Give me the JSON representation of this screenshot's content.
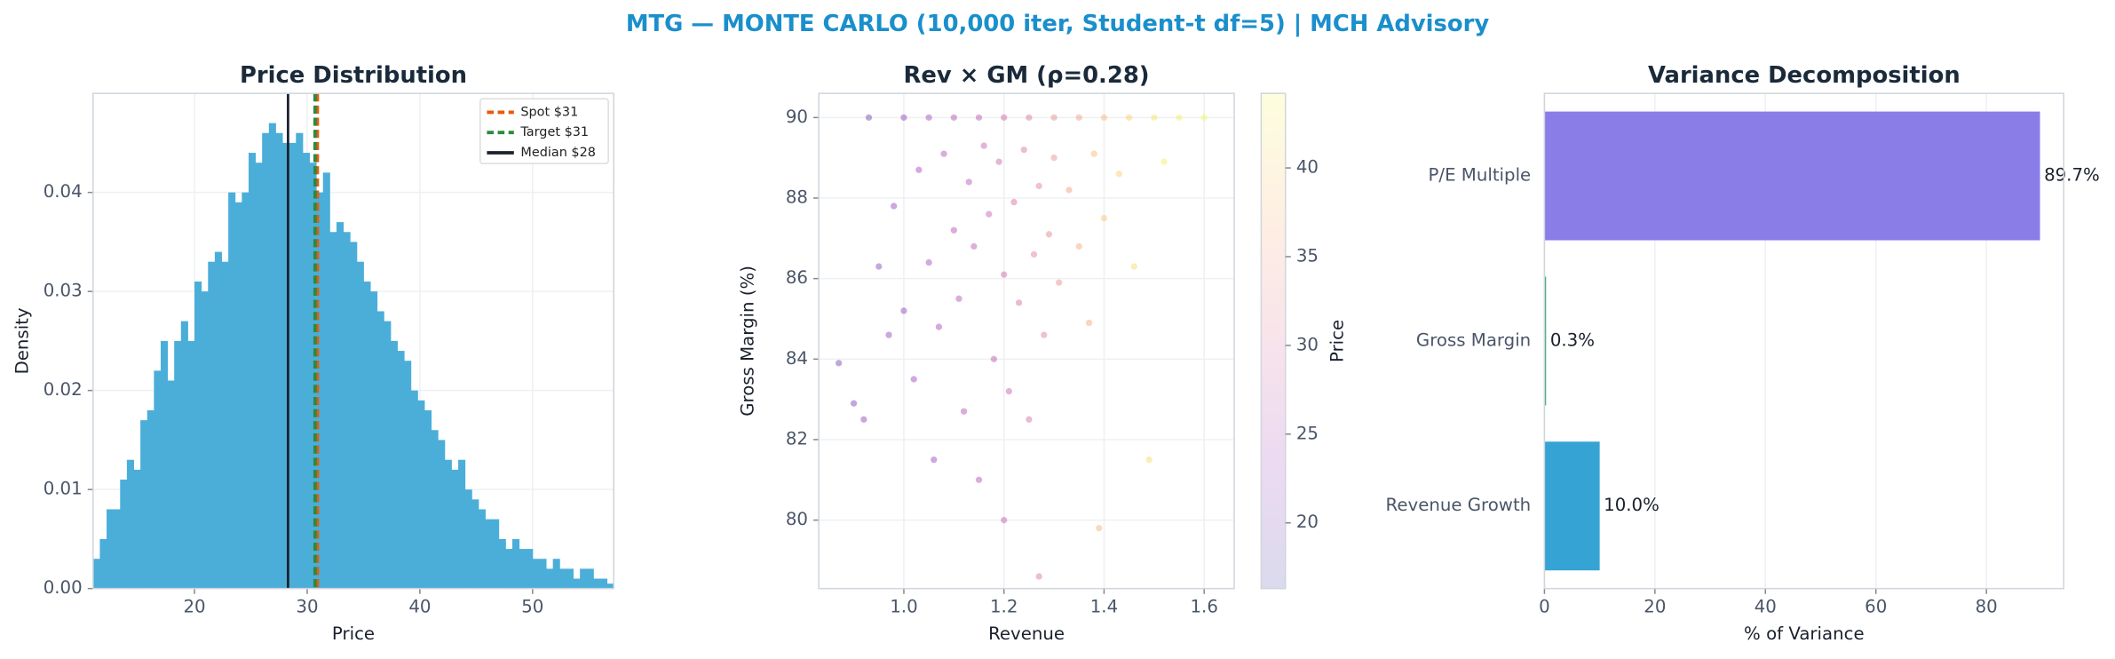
{
  "title": "MTG — MONTE CARLO (10,000 iter, Student-t df=5) | MCH Advisory",
  "chart_data": [
    {
      "type": "histogram",
      "title": "Price Distribution",
      "x_label": "Price",
      "y_label": "Density",
      "color": "#4aaed9",
      "bins": [
        11.0,
        11.6,
        12.2,
        12.8,
        13.4,
        14.0,
        14.6,
        15.2,
        15.8,
        16.4,
        17.0,
        17.6,
        18.2,
        18.8,
        19.4,
        20.0,
        20.6,
        21.2,
        21.8,
        22.4,
        23.0,
        23.6,
        24.2,
        24.8,
        25.4,
        26.0,
        26.6,
        27.2,
        27.8,
        28.4,
        29.0,
        29.6,
        30.2,
        30.8,
        31.4,
        32.0,
        32.6,
        33.2,
        33.8,
        34.4,
        35.0,
        35.6,
        36.2,
        36.8,
        37.4,
        38.0,
        38.6,
        39.2,
        39.8,
        40.4,
        41.0,
        41.6,
        42.2,
        42.8,
        43.4,
        44.0,
        44.6,
        45.2,
        45.8,
        46.4,
        47.0,
        47.6,
        48.2,
        48.8,
        49.4,
        50.0,
        50.6,
        51.2,
        51.8,
        52.4,
        53.0,
        53.6,
        54.2,
        54.8,
        55.4,
        56.0,
        56.6,
        57.2
      ],
      "values": [
        0.003,
        0.005,
        0.008,
        0.008,
        0.011,
        0.013,
        0.012,
        0.017,
        0.018,
        0.022,
        0.025,
        0.021,
        0.025,
        0.027,
        0.025,
        0.031,
        0.03,
        0.033,
        0.034,
        0.033,
        0.04,
        0.039,
        0.04,
        0.044,
        0.043,
        0.046,
        0.047,
        0.046,
        0.045,
        0.045,
        0.046,
        0.044,
        0.043,
        0.04,
        0.042,
        0.036,
        0.037,
        0.036,
        0.035,
        0.033,
        0.031,
        0.03,
        0.028,
        0.027,
        0.025,
        0.024,
        0.023,
        0.02,
        0.019,
        0.018,
        0.016,
        0.015,
        0.013,
        0.012,
        0.013,
        0.01,
        0.009,
        0.008,
        0.007,
        0.007,
        0.005,
        0.004,
        0.005,
        0.004,
        0.004,
        0.003,
        0.003,
        0.002,
        0.003,
        0.002,
        0.002,
        0.001,
        0.002,
        0.002,
        0.001,
        0.001,
        0.0005
      ],
      "lines": [
        {
          "name": "Spot $31",
          "value": 30.9,
          "color": "#e8590c",
          "dashed": true
        },
        {
          "name": "Target $31",
          "value": 30.7,
          "color": "#2b8a3e",
          "dashed": true
        },
        {
          "name": "Median $28",
          "value": 28.3,
          "color": "#1a202c",
          "dashed": false
        }
      ],
      "xlim": [
        11,
        57.2
      ],
      "xticks": [
        20,
        30,
        40,
        50
      ],
      "ylim": [
        0,
        0.05
      ],
      "yticks": [
        {
          "value": 0,
          "label": "0.00"
        },
        0.01,
        0.02,
        0.03,
        0.04
      ],
      "grid": true,
      "legend": "upper right"
    },
    {
      "type": "scatter",
      "title": "Rev × GM (ρ=0.28)",
      "x_label": "Revenue",
      "y_label": "Gross Margin (%)",
      "colorbar_label": "Price",
      "x": [
        0.87,
        0.9,
        0.92,
        0.95,
        0.97,
        0.98,
        1.0,
        1.02,
        1.03,
        1.05,
        1.06,
        1.07,
        1.08,
        1.1,
        1.11,
        1.12,
        1.13,
        1.14,
        1.15,
        1.16,
        1.17,
        1.18,
        1.19,
        1.2,
        1.21,
        1.22,
        1.23,
        1.24,
        1.25,
        1.26,
        1.27,
        1.28,
        1.29,
        1.3,
        1.31,
        1.33,
        1.35,
        1.37,
        1.38,
        1.4,
        1.43,
        1.46,
        1.49,
        1.52,
        1.27,
        1.39,
        1.2,
        0.93,
        1.0,
        1.05,
        1.1,
        1.15,
        1.2,
        1.25,
        1.3,
        1.35,
        1.4,
        1.45,
        1.5,
        1.55,
        1.6
      ],
      "values": [
        83.9,
        82.9,
        82.5,
        86.3,
        84.6,
        87.8,
        85.2,
        83.5,
        88.7,
        86.4,
        81.5,
        84.8,
        89.1,
        87.2,
        85.5,
        82.7,
        88.4,
        86.8,
        81.0,
        89.3,
        87.6,
        84.0,
        88.9,
        86.1,
        83.2,
        87.9,
        85.4,
        89.2,
        82.5,
        86.6,
        88.3,
        84.6,
        87.1,
        89.0,
        85.9,
        88.2,
        86.8,
        84.9,
        89.1,
        87.5,
        88.6,
        86.3,
        81.5,
        88.9,
        78.6,
        79.8,
        80.0,
        90,
        90,
        90,
        90,
        90,
        90,
        90,
        90,
        90,
        90,
        90,
        90,
        90,
        90
      ],
      "color_values": [
        20,
        20,
        21,
        21,
        22,
        22,
        22,
        23,
        24,
        24,
        23,
        24,
        25,
        25,
        25,
        25,
        26,
        26,
        25,
        27,
        27,
        26,
        28,
        28,
        27,
        29,
        29,
        30,
        29,
        31,
        31,
        31,
        32,
        33,
        33,
        35,
        36,
        36,
        38,
        39,
        40,
        41,
        41,
        43,
        30,
        37,
        27,
        20,
        22,
        24,
        25,
        26,
        28,
        30,
        33,
        35,
        38,
        40,
        42,
        43,
        44
      ],
      "colormap": [
        "#0d0887",
        "#7e03a8",
        "#cc4778",
        "#f89540",
        "#f0f921"
      ],
      "clim": [
        16.3,
        44.2
      ],
      "cticks": [
        20,
        25,
        30,
        35,
        40
      ],
      "xlim": [
        0.83,
        1.66
      ],
      "xticks": [
        {
          "value": 1.0,
          "label": "1.0"
        },
        1.2,
        1.4,
        1.6
      ],
      "ylim": [
        78.3,
        90.6
      ],
      "yticks": [
        80,
        82,
        84,
        86,
        88,
        90
      ],
      "grid": true
    },
    {
      "type": "barh",
      "title": "Variance Decomposition",
      "x_label": "% of Variance",
      "categories": [
        "P/E Multiple",
        "Gross Margin",
        "Revenue Growth"
      ],
      "values": [
        89.7,
        0.3,
        10.0
      ],
      "value_labels": [
        "89.7%",
        "0.3%",
        "10.0%"
      ],
      "colors": [
        "#8a7de8",
        "#3aaa80",
        "#35a3d4"
      ],
      "xlim": [
        0,
        94
      ],
      "xticks": [
        0,
        20,
        40,
        60,
        80
      ],
      "grid": true
    }
  ]
}
